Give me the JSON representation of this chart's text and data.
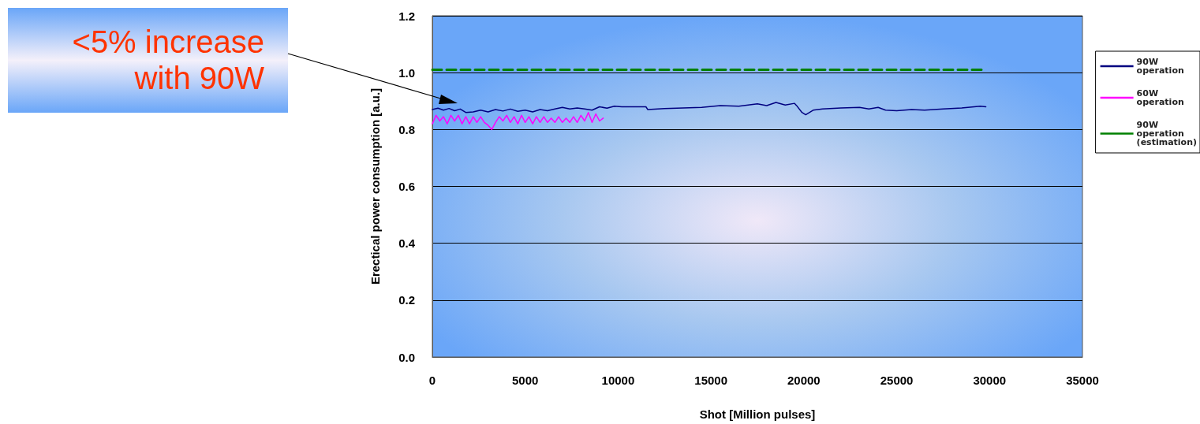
{
  "chart_data": {
    "type": "line",
    "xlabel": "Shot [Million pulses]",
    "ylabel": "Erectical power consumption [a.u.]",
    "xlim": [
      0,
      35000
    ],
    "xticks": [
      0,
      5000,
      10000,
      15000,
      20000,
      25000,
      30000,
      35000
    ],
    "ylim": [
      0,
      1.2
    ],
    "yticks": [
      {
        "value": 0,
        "label": "0.0"
      },
      {
        "value": 0.2,
        "label": "0.2"
      },
      {
        "value": 0.4,
        "label": "0.4"
      },
      {
        "value": 0.6,
        "label": "0.6"
      },
      {
        "value": 0.8,
        "label": "0.8"
      },
      {
        "value": 1.0,
        "label": "1.0"
      },
      {
        "value": 1.2,
        "label": "1.2"
      }
    ],
    "grid": "y",
    "legend": "right",
    "marker": "none",
    "annotations": [
      "<5% increase with 90W"
    ],
    "series": [
      {
        "name": "90W operation",
        "color": "#000080",
        "x": [
          0,
          300,
          600,
          900,
          1200,
          1500,
          1800,
          2200,
          2600,
          3000,
          3400,
          3800,
          4200,
          4600,
          5000,
          5400,
          5800,
          6200,
          6600,
          7000,
          7400,
          7800,
          8200,
          8600,
          9000,
          9400,
          9800,
          10200,
          11500,
          11600,
          12500,
          13500,
          14500,
          15500,
          16500,
          17500,
          18000,
          18500,
          19000,
          19500,
          19600,
          19900,
          20100,
          20500,
          21000,
          22000,
          23000,
          23500,
          24000,
          24400,
          25000,
          25800,
          26500,
          27500,
          28500,
          29500,
          29800
        ],
        "values": [
          0.87,
          0.875,
          0.868,
          0.874,
          0.866,
          0.872,
          0.86,
          0.862,
          0.868,
          0.862,
          0.87,
          0.865,
          0.872,
          0.864,
          0.868,
          0.862,
          0.87,
          0.866,
          0.872,
          0.878,
          0.872,
          0.876,
          0.872,
          0.868,
          0.88,
          0.875,
          0.882,
          0.88,
          0.88,
          0.87,
          0.874,
          0.876,
          0.878,
          0.884,
          0.882,
          0.89,
          0.884,
          0.895,
          0.886,
          0.892,
          0.885,
          0.86,
          0.852,
          0.868,
          0.872,
          0.876,
          0.878,
          0.872,
          0.878,
          0.868,
          0.866,
          0.87,
          0.868,
          0.872,
          0.876,
          0.882,
          0.88
        ]
      },
      {
        "name": "60W operation",
        "color": "#ff00ff",
        "x": [
          0,
          200,
          400,
          600,
          800,
          1000,
          1200,
          1400,
          1600,
          1800,
          2000,
          2200,
          2400,
          2600,
          2800,
          3000,
          3200,
          3400,
          3600,
          3800,
          4000,
          4200,
          4400,
          4600,
          4800,
          5000,
          5200,
          5400,
          5600,
          5800,
          6000,
          6200,
          6400,
          6600,
          6800,
          7000,
          7200,
          7400,
          7600,
          7800,
          8000,
          8200,
          8400,
          8600,
          8800,
          9000,
          9200
        ],
        "values": [
          0.82,
          0.85,
          0.83,
          0.845,
          0.82,
          0.85,
          0.83,
          0.85,
          0.82,
          0.845,
          0.82,
          0.845,
          0.825,
          0.845,
          0.825,
          0.815,
          0.8,
          0.825,
          0.845,
          0.83,
          0.85,
          0.825,
          0.845,
          0.82,
          0.85,
          0.825,
          0.845,
          0.82,
          0.845,
          0.825,
          0.845,
          0.825,
          0.84,
          0.825,
          0.845,
          0.825,
          0.84,
          0.825,
          0.845,
          0.825,
          0.85,
          0.83,
          0.86,
          0.825,
          0.855,
          0.83,
          0.84
        ]
      },
      {
        "name": "90W operation (estimation)",
        "color": "#008000",
        "line_style": "dashed",
        "x": [
          0,
          29800
        ],
        "values": [
          1.01,
          1.01
        ]
      }
    ]
  }
}
